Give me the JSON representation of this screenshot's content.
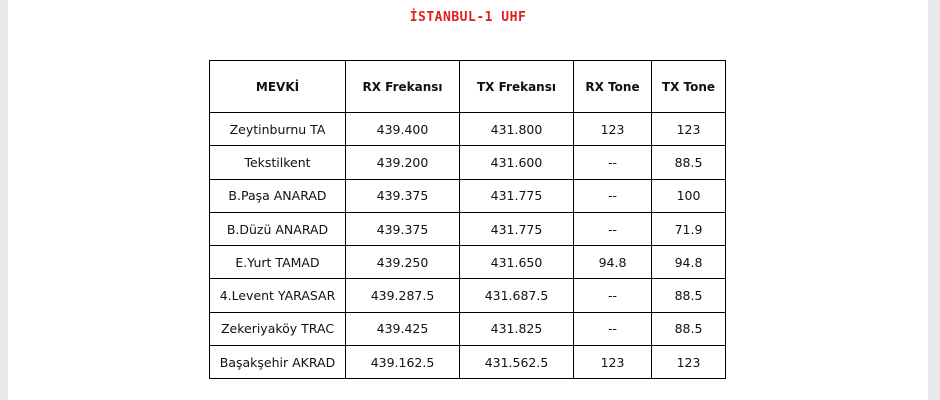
{
  "title": "İSTANBUL-1  UHF",
  "table": {
    "headers": [
      "MEVKİ",
      "RX Frekansı",
      "TX Frekansı",
      "RX Tone",
      "TX Tone"
    ],
    "rows": [
      [
        "Zeytinburnu TA",
        "439.400",
        "431.800",
        "123",
        "123"
      ],
      [
        "Tekstilkent",
        "439.200",
        "431.600",
        "--",
        "88.5"
      ],
      [
        "B.Paşa ANARAD",
        "439.375",
        "431.775",
        "--",
        "100"
      ],
      [
        "B.Düzü ANARAD",
        "439.375",
        "431.775",
        "--",
        "71.9"
      ],
      [
        "E.Yurt TAMAD",
        "439.250",
        "431.650",
        "94.8",
        "94.8"
      ],
      [
        "4.Levent YARASAR",
        "439.287.5",
        "431.687.5",
        "--",
        "88.5"
      ],
      [
        "Zekeriyaköy TRAC",
        "439.425",
        "431.825",
        "--",
        "88.5"
      ],
      [
        "Başakşehir AKRAD",
        "439.162.5",
        "431.562.5",
        "123",
        "123"
      ]
    ]
  }
}
